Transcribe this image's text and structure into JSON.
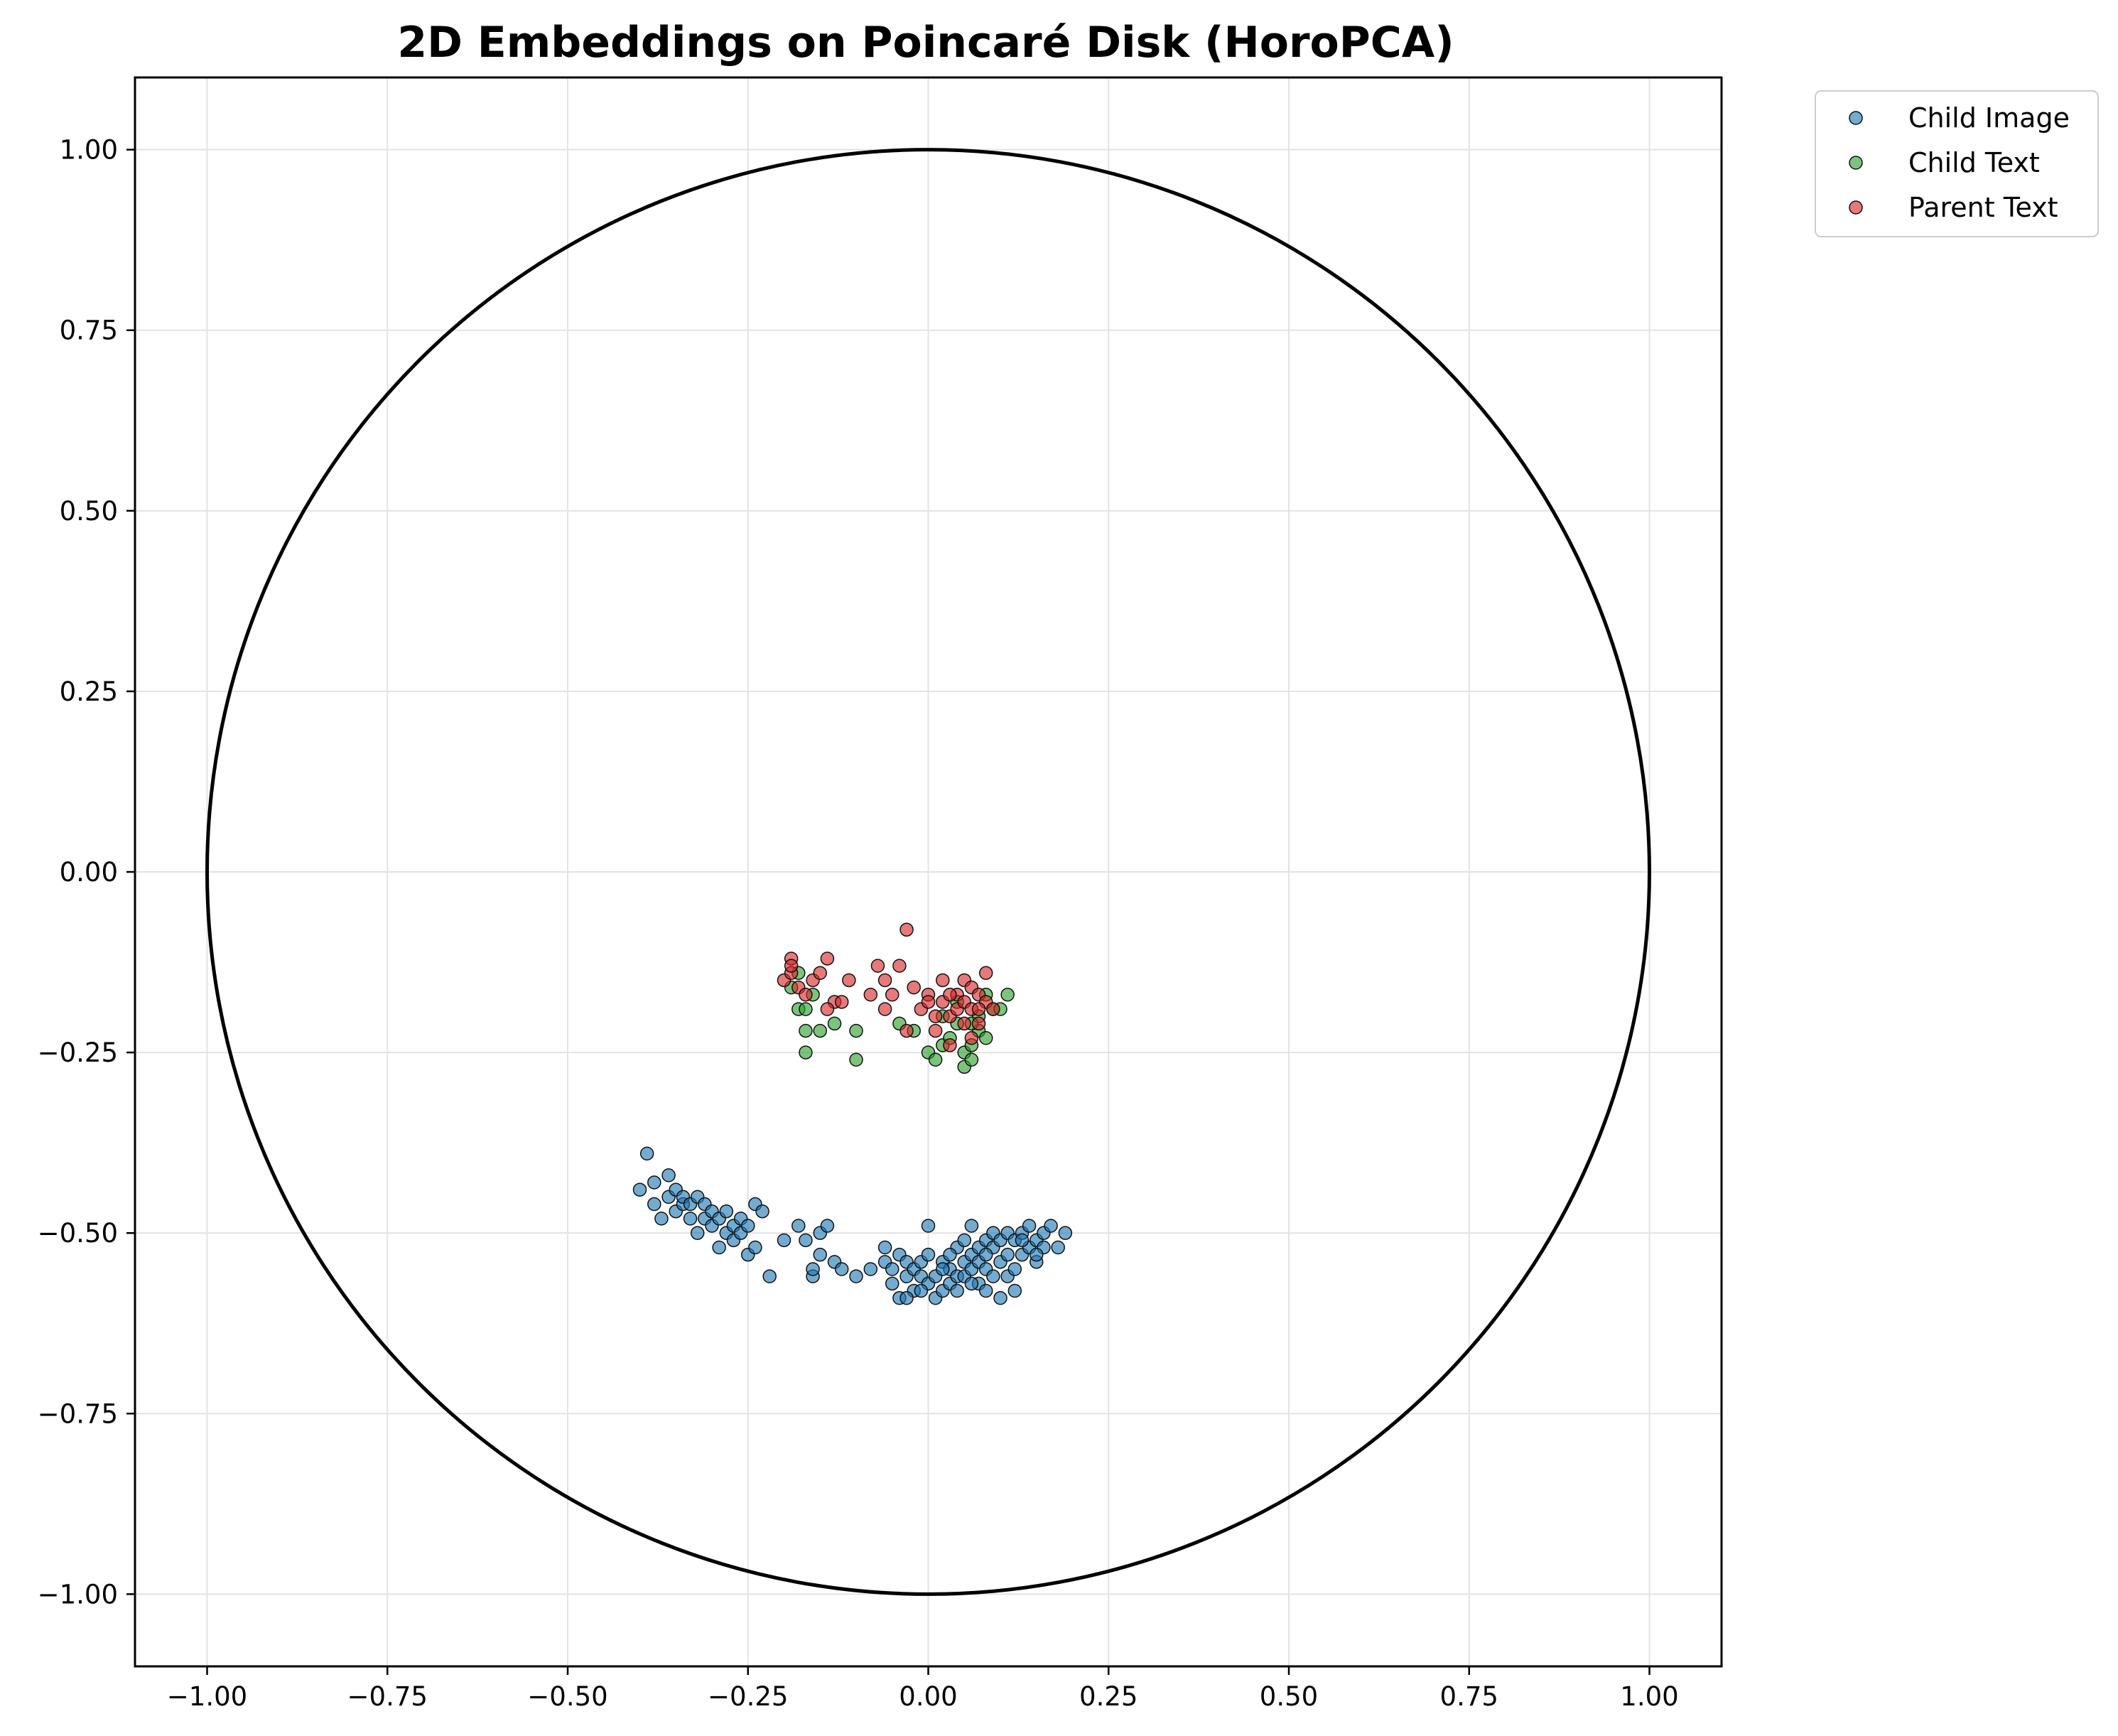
{
  "chart_data": {
    "type": "scatter",
    "title": "2D Embeddings on Poincaré Disk (HoroPCA)",
    "xlabel": "",
    "ylabel": "",
    "xlim": [
      -1.1,
      1.1
    ],
    "ylim": [
      -1.1,
      1.1
    ],
    "grid": true,
    "legend_position": "outside-top-right",
    "boundary_circle": {
      "center": [
        0,
        0
      ],
      "radius": 1.0,
      "color": "#000000"
    },
    "x_ticks": [
      "−1.00",
      "−0.75",
      "−0.50",
      "−0.25",
      "0.00",
      "0.25",
      "0.50",
      "0.75",
      "1.00"
    ],
    "x_tick_values": [
      -1.0,
      -0.75,
      -0.5,
      -0.25,
      0.0,
      0.25,
      0.5,
      0.75,
      1.0
    ],
    "y_ticks": [
      "1.00",
      "0.75",
      "0.50",
      "0.25",
      "0.00",
      "−0.25",
      "−0.50",
      "−0.75",
      "−1.00"
    ],
    "y_tick_values": [
      1.0,
      0.75,
      0.5,
      0.25,
      0.0,
      -0.25,
      -0.5,
      -0.75,
      -1.0
    ],
    "series": [
      {
        "name": "Child Image",
        "color": "#1f77b4",
        "points": [
          [
            -0.4,
            -0.44
          ],
          [
            -0.39,
            -0.39
          ],
          [
            -0.38,
            -0.43
          ],
          [
            -0.38,
            -0.46
          ],
          [
            -0.37,
            -0.48
          ],
          [
            -0.36,
            -0.45
          ],
          [
            -0.36,
            -0.42
          ],
          [
            -0.35,
            -0.47
          ],
          [
            -0.35,
            -0.44
          ],
          [
            -0.34,
            -0.46
          ],
          [
            -0.34,
            -0.45
          ],
          [
            -0.33,
            -0.48
          ],
          [
            -0.33,
            -0.46
          ],
          [
            -0.32,
            -0.5
          ],
          [
            -0.32,
            -0.45
          ],
          [
            -0.31,
            -0.48
          ],
          [
            -0.31,
            -0.46
          ],
          [
            -0.3,
            -0.49
          ],
          [
            -0.3,
            -0.47
          ],
          [
            -0.29,
            -0.52
          ],
          [
            -0.29,
            -0.48
          ],
          [
            -0.28,
            -0.5
          ],
          [
            -0.28,
            -0.47
          ],
          [
            -0.27,
            -0.49
          ],
          [
            -0.27,
            -0.51
          ],
          [
            -0.26,
            -0.48
          ],
          [
            -0.26,
            -0.5
          ],
          [
            -0.25,
            -0.53
          ],
          [
            -0.25,
            -0.49
          ],
          [
            -0.24,
            -0.52
          ],
          [
            -0.24,
            -0.46
          ],
          [
            -0.23,
            -0.47
          ],
          [
            -0.22,
            -0.56
          ],
          [
            -0.2,
            -0.51
          ],
          [
            -0.18,
            -0.49
          ],
          [
            -0.17,
            -0.51
          ],
          [
            -0.16,
            -0.56
          ],
          [
            -0.16,
            -0.55
          ],
          [
            -0.15,
            -0.5
          ],
          [
            -0.15,
            -0.53
          ],
          [
            -0.14,
            -0.49
          ],
          [
            -0.13,
            -0.54
          ],
          [
            -0.12,
            -0.55
          ],
          [
            -0.1,
            -0.56
          ],
          [
            -0.08,
            -0.55
          ],
          [
            -0.06,
            -0.52
          ],
          [
            -0.06,
            -0.54
          ],
          [
            -0.05,
            -0.57
          ],
          [
            -0.05,
            -0.55
          ],
          [
            -0.04,
            -0.59
          ],
          [
            -0.04,
            -0.53
          ],
          [
            -0.03,
            -0.56
          ],
          [
            -0.03,
            -0.54
          ],
          [
            -0.02,
            -0.58
          ],
          [
            -0.02,
            -0.55
          ],
          [
            -0.01,
            -0.56
          ],
          [
            -0.01,
            -0.54
          ],
          [
            0.0,
            -0.57
          ],
          [
            0.0,
            -0.49
          ],
          [
            0.0,
            -0.53
          ],
          [
            0.01,
            -0.59
          ],
          [
            0.01,
            -0.56
          ],
          [
            0.02,
            -0.54
          ],
          [
            0.02,
            -0.58
          ],
          [
            0.03,
            -0.55
          ],
          [
            0.03,
            -0.57
          ],
          [
            0.04,
            -0.52
          ],
          [
            0.04,
            -0.56
          ],
          [
            0.04,
            -0.58
          ],
          [
            0.05,
            -0.54
          ],
          [
            0.05,
            -0.51
          ],
          [
            0.05,
            -0.56
          ],
          [
            0.06,
            -0.53
          ],
          [
            0.06,
            -0.55
          ],
          [
            0.06,
            -0.49
          ],
          [
            0.07,
            -0.52
          ],
          [
            0.07,
            -0.57
          ],
          [
            0.07,
            -0.54
          ],
          [
            0.08,
            -0.51
          ],
          [
            0.08,
            -0.55
          ],
          [
            0.08,
            -0.58
          ],
          [
            0.09,
            -0.52
          ],
          [
            0.09,
            -0.5
          ],
          [
            0.09,
            -0.56
          ],
          [
            0.1,
            -0.51
          ],
          [
            0.1,
            -0.54
          ],
          [
            0.1,
            -0.59
          ],
          [
            0.11,
            -0.5
          ],
          [
            0.11,
            -0.53
          ],
          [
            0.11,
            -0.56
          ],
          [
            0.12,
            -0.51
          ],
          [
            0.12,
            -0.58
          ],
          [
            0.13,
            -0.5
          ],
          [
            0.13,
            -0.53
          ],
          [
            0.14,
            -0.49
          ],
          [
            0.14,
            -0.52
          ],
          [
            0.15,
            -0.51
          ],
          [
            0.15,
            -0.54
          ],
          [
            0.16,
            -0.5
          ],
          [
            0.16,
            -0.52
          ],
          [
            0.17,
            -0.49
          ],
          [
            0.18,
            -0.52
          ],
          [
            0.19,
            -0.5
          ],
          [
            -0.03,
            -0.59
          ],
          [
            0.02,
            -0.55
          ],
          [
            0.06,
            -0.57
          ],
          [
            0.12,
            -0.55
          ],
          [
            -0.01,
            -0.58
          ],
          [
            0.03,
            -0.53
          ],
          [
            0.08,
            -0.53
          ],
          [
            0.13,
            -0.51
          ],
          [
            0.15,
            -0.53
          ]
        ]
      },
      {
        "name": "Child Text",
        "color": "#2ca02c",
        "points": [
          [
            -0.19,
            -0.16
          ],
          [
            -0.18,
            -0.19
          ],
          [
            -0.17,
            -0.25
          ],
          [
            -0.17,
            -0.22
          ],
          [
            -0.17,
            -0.19
          ],
          [
            -0.16,
            -0.17
          ],
          [
            -0.15,
            -0.22
          ],
          [
            -0.13,
            -0.21
          ],
          [
            -0.1,
            -0.26
          ],
          [
            -0.1,
            -0.22
          ],
          [
            -0.04,
            -0.21
          ],
          [
            -0.02,
            -0.22
          ],
          [
            0.0,
            -0.25
          ],
          [
            0.01,
            -0.26
          ],
          [
            0.02,
            -0.24
          ],
          [
            0.03,
            -0.23
          ],
          [
            0.04,
            -0.21
          ],
          [
            0.04,
            -0.18
          ],
          [
            0.05,
            -0.27
          ],
          [
            0.05,
            -0.25
          ],
          [
            0.06,
            -0.26
          ],
          [
            0.06,
            -0.24
          ],
          [
            0.07,
            -0.22
          ],
          [
            0.07,
            -0.2
          ],
          [
            0.08,
            -0.23
          ],
          [
            0.08,
            -0.17
          ],
          [
            0.09,
            -0.19
          ],
          [
            0.1,
            -0.19
          ],
          [
            0.11,
            -0.17
          ],
          [
            0.02,
            -0.2
          ],
          [
            0.06,
            -0.21
          ],
          [
            -0.18,
            -0.14
          ]
        ]
      },
      {
        "name": "Parent Text",
        "color": "#d62728",
        "points": [
          [
            -0.2,
            -0.15
          ],
          [
            -0.19,
            -0.14
          ],
          [
            -0.19,
            -0.12
          ],
          [
            -0.18,
            -0.16
          ],
          [
            -0.17,
            -0.17
          ],
          [
            -0.16,
            -0.15
          ],
          [
            -0.15,
            -0.14
          ],
          [
            -0.14,
            -0.12
          ],
          [
            -0.13,
            -0.18
          ],
          [
            -0.12,
            -0.18
          ],
          [
            -0.11,
            -0.15
          ],
          [
            -0.08,
            -0.17
          ],
          [
            -0.07,
            -0.13
          ],
          [
            -0.06,
            -0.19
          ],
          [
            -0.06,
            -0.15
          ],
          [
            -0.05,
            -0.17
          ],
          [
            -0.04,
            -0.13
          ],
          [
            -0.03,
            -0.08
          ],
          [
            -0.03,
            -0.22
          ],
          [
            -0.02,
            -0.16
          ],
          [
            -0.01,
            -0.19
          ],
          [
            0.0,
            -0.17
          ],
          [
            0.01,
            -0.2
          ],
          [
            0.01,
            -0.22
          ],
          [
            0.02,
            -0.15
          ],
          [
            0.02,
            -0.18
          ],
          [
            0.03,
            -0.24
          ],
          [
            0.03,
            -0.2
          ],
          [
            0.04,
            -0.17
          ],
          [
            0.04,
            -0.19
          ],
          [
            0.05,
            -0.15
          ],
          [
            0.05,
            -0.18
          ],
          [
            0.06,
            -0.16
          ],
          [
            0.06,
            -0.19
          ],
          [
            0.07,
            -0.17
          ],
          [
            0.07,
            -0.21
          ],
          [
            0.08,
            -0.14
          ],
          [
            0.08,
            -0.18
          ],
          [
            0.09,
            -0.19
          ],
          [
            0.03,
            -0.17
          ],
          [
            0.05,
            -0.21
          ],
          [
            0.06,
            -0.23
          ],
          [
            -0.19,
            -0.13
          ],
          [
            -0.14,
            -0.19
          ],
          [
            0.0,
            -0.18
          ],
          [
            0.07,
            -0.19
          ]
        ]
      }
    ]
  }
}
